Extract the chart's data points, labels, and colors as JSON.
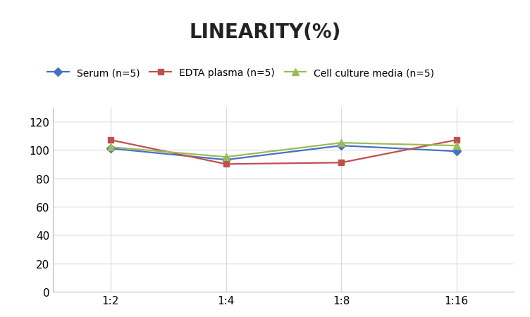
{
  "title": "LINEARITY(%)",
  "x_labels": [
    "1:2",
    "1:4",
    "1:8",
    "1:16"
  ],
  "x_positions": [
    0,
    1,
    2,
    3
  ],
  "series": [
    {
      "label": "Serum (n=5)",
      "values": [
        101,
        93,
        103,
        99
      ],
      "color": "#4472C4",
      "marker": "D",
      "marker_size": 6,
      "linewidth": 1.6
    },
    {
      "label": "EDTA plasma (n=5)",
      "values": [
        107,
        90,
        91,
        107
      ],
      "color": "#C0504D",
      "marker": "s",
      "marker_size": 6,
      "linewidth": 1.6
    },
    {
      "label": "Cell culture media (n=5)",
      "values": [
        102,
        95,
        105,
        103
      ],
      "color": "#9BBB59",
      "marker": "^",
      "marker_size": 7,
      "linewidth": 1.6
    }
  ],
  "ylim": [
    0,
    130
  ],
  "yticks": [
    0,
    20,
    40,
    60,
    80,
    100,
    120
  ],
  "grid_color": "#D9D9D9",
  "background_color": "#FFFFFF",
  "title_fontsize": 20,
  "title_fontweight": "bold",
  "legend_fontsize": 10,
  "tick_fontsize": 11
}
